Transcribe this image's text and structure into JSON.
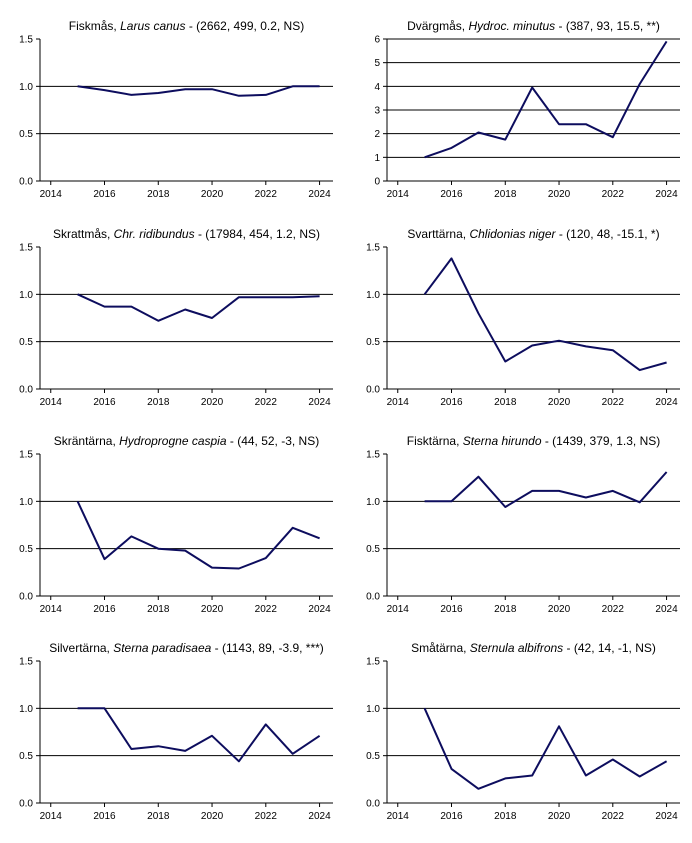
{
  "colors": {
    "line": "#0d0d5e",
    "axis": "#000000",
    "gridline": "#000000",
    "background": "#ffffff"
  },
  "chart_data": [
    {
      "type": "line",
      "title": {
        "name": "Fiskmås, ",
        "species": "Larus canus",
        "stats": " - (2662, 499, 0.2, NS)"
      },
      "x": [
        2015,
        2016,
        2017,
        2018,
        2019,
        2020,
        2021,
        2022,
        2023,
        2024
      ],
      "values": [
        1.0,
        0.96,
        0.91,
        0.93,
        0.97,
        0.97,
        0.9,
        0.91,
        1.0,
        1.0
      ],
      "xlim": [
        2013.6,
        2024.5
      ],
      "ylim": [
        0,
        1.5
      ],
      "xticks": [
        "2014",
        "2016",
        "2018",
        "2020",
        "2022",
        "2024"
      ],
      "yticks": [
        "0.0",
        "0.5",
        "1.0",
        "1.5"
      ],
      "gridlines": [
        0.5,
        1.0
      ]
    },
    {
      "type": "line",
      "title": {
        "name": "Dvärgmås, ",
        "species": "Hydroc. minutus",
        "stats": " - (387, 93, 15.5, **)"
      },
      "x": [
        2015,
        2016,
        2017,
        2018,
        2019,
        2020,
        2021,
        2022,
        2023,
        2024
      ],
      "values": [
        1.0,
        1.4,
        2.05,
        1.75,
        3.95,
        2.4,
        2.4,
        1.85,
        4.1,
        5.9
      ],
      "xlim": [
        2013.6,
        2024.5
      ],
      "ylim": [
        0,
        6
      ],
      "xticks": [
        "2014",
        "2016",
        "2018",
        "2020",
        "2022",
        "2024"
      ],
      "yticks": [
        "0",
        "1",
        "2",
        "3",
        "4",
        "5",
        "6"
      ],
      "gridlines": [
        1,
        2,
        3,
        4,
        5,
        6
      ]
    },
    {
      "type": "line",
      "title": {
        "name": "Skrattmås, ",
        "species": "Chr. ridibundus",
        "stats": " - (17984, 454, 1.2, NS)"
      },
      "x": [
        2015,
        2016,
        2017,
        2018,
        2019,
        2020,
        2021,
        2022,
        2023,
        2024
      ],
      "values": [
        1.0,
        0.87,
        0.87,
        0.72,
        0.84,
        0.75,
        0.97,
        0.97,
        0.97,
        0.98
      ],
      "xlim": [
        2013.6,
        2024.5
      ],
      "ylim": [
        0,
        1.5
      ],
      "xticks": [
        "2014",
        "2016",
        "2018",
        "2020",
        "2022",
        "2024"
      ],
      "yticks": [
        "0.0",
        "0.5",
        "1.0",
        "1.5"
      ],
      "gridlines": [
        0.5,
        1.0
      ]
    },
    {
      "type": "line",
      "title": {
        "name": "Svarttärna, ",
        "species": "Chlidonias niger",
        "stats": " - (120, 48, -15.1, *)"
      },
      "x": [
        2015,
        2016,
        2017,
        2018,
        2019,
        2020,
        2021,
        2022,
        2023,
        2024
      ],
      "values": [
        1.0,
        1.38,
        0.8,
        0.29,
        0.46,
        0.51,
        0.45,
        0.41,
        0.2,
        0.28
      ],
      "xlim": [
        2013.6,
        2024.5
      ],
      "ylim": [
        0,
        1.5
      ],
      "xticks": [
        "2014",
        "2016",
        "2018",
        "2020",
        "2022",
        "2024"
      ],
      "yticks": [
        "0.0",
        "0.5",
        "1.0",
        "1.5"
      ],
      "gridlines": [
        0.5,
        1.0
      ]
    },
    {
      "type": "line",
      "title": {
        "name": "Skräntärna, ",
        "species": "Hydroprogne caspia",
        "stats": " - (44, 52, -3, NS)"
      },
      "x": [
        2015,
        2016,
        2017,
        2018,
        2019,
        2020,
        2021,
        2022,
        2023,
        2024
      ],
      "values": [
        1.0,
        0.39,
        0.63,
        0.5,
        0.48,
        0.3,
        0.29,
        0.4,
        0.72,
        0.61
      ],
      "xlim": [
        2013.6,
        2024.5
      ],
      "ylim": [
        0,
        1.5
      ],
      "xticks": [
        "2014",
        "2016",
        "2018",
        "2020",
        "2022",
        "2024"
      ],
      "yticks": [
        "0.0",
        "0.5",
        "1.0",
        "1.5"
      ],
      "gridlines": [
        0.5,
        1.0
      ]
    },
    {
      "type": "line",
      "title": {
        "name": "Fisktärna, ",
        "species": "Sterna hirundo",
        "stats": " - (1439, 379, 1.3, NS)"
      },
      "x": [
        2015,
        2016,
        2017,
        2018,
        2019,
        2020,
        2021,
        2022,
        2023,
        2024
      ],
      "values": [
        1.0,
        1.0,
        1.26,
        0.94,
        1.11,
        1.11,
        1.04,
        1.11,
        0.99,
        1.31
      ],
      "xlim": [
        2013.6,
        2024.5
      ],
      "ylim": [
        0,
        1.5
      ],
      "xticks": [
        "2014",
        "2016",
        "2018",
        "2020",
        "2022",
        "2024"
      ],
      "yticks": [
        "0.0",
        "0.5",
        "1.0",
        "1.5"
      ],
      "gridlines": [
        0.5,
        1.0
      ]
    },
    {
      "type": "line",
      "title": {
        "name": "Silvertärna, ",
        "species": "Sterna paradisaea",
        "stats": " - (1143, 89, -3.9, ***)"
      },
      "x": [
        2015,
        2016,
        2017,
        2018,
        2019,
        2020,
        2021,
        2022,
        2023,
        2024
      ],
      "values": [
        1.0,
        1.0,
        0.57,
        0.6,
        0.55,
        0.71,
        0.44,
        0.83,
        0.52,
        0.71
      ],
      "xlim": [
        2013.6,
        2024.5
      ],
      "ylim": [
        0,
        1.5
      ],
      "xticks": [
        "2014",
        "2016",
        "2018",
        "2020",
        "2022",
        "2024"
      ],
      "yticks": [
        "0.0",
        "0.5",
        "1.0",
        "1.5"
      ],
      "gridlines": [
        0.5,
        1.0
      ]
    },
    {
      "type": "line",
      "title": {
        "name": "Småtärna, ",
        "species": "Sternula albifrons",
        "stats": " - (42, 14, -1, NS)"
      },
      "x": [
        2015,
        2016,
        2017,
        2018,
        2019,
        2020,
        2021,
        2022,
        2023,
        2024
      ],
      "values": [
        1.0,
        0.36,
        0.15,
        0.26,
        0.29,
        0.81,
        0.29,
        0.46,
        0.28,
        0.44
      ],
      "xlim": [
        2013.6,
        2024.5
      ],
      "ylim": [
        0,
        1.5
      ],
      "xticks": [
        "2014",
        "2016",
        "2018",
        "2020",
        "2022",
        "2024"
      ],
      "yticks": [
        "0.0",
        "0.5",
        "1.0",
        "1.5"
      ],
      "gridlines": [
        0.5,
        1.0
      ]
    }
  ]
}
